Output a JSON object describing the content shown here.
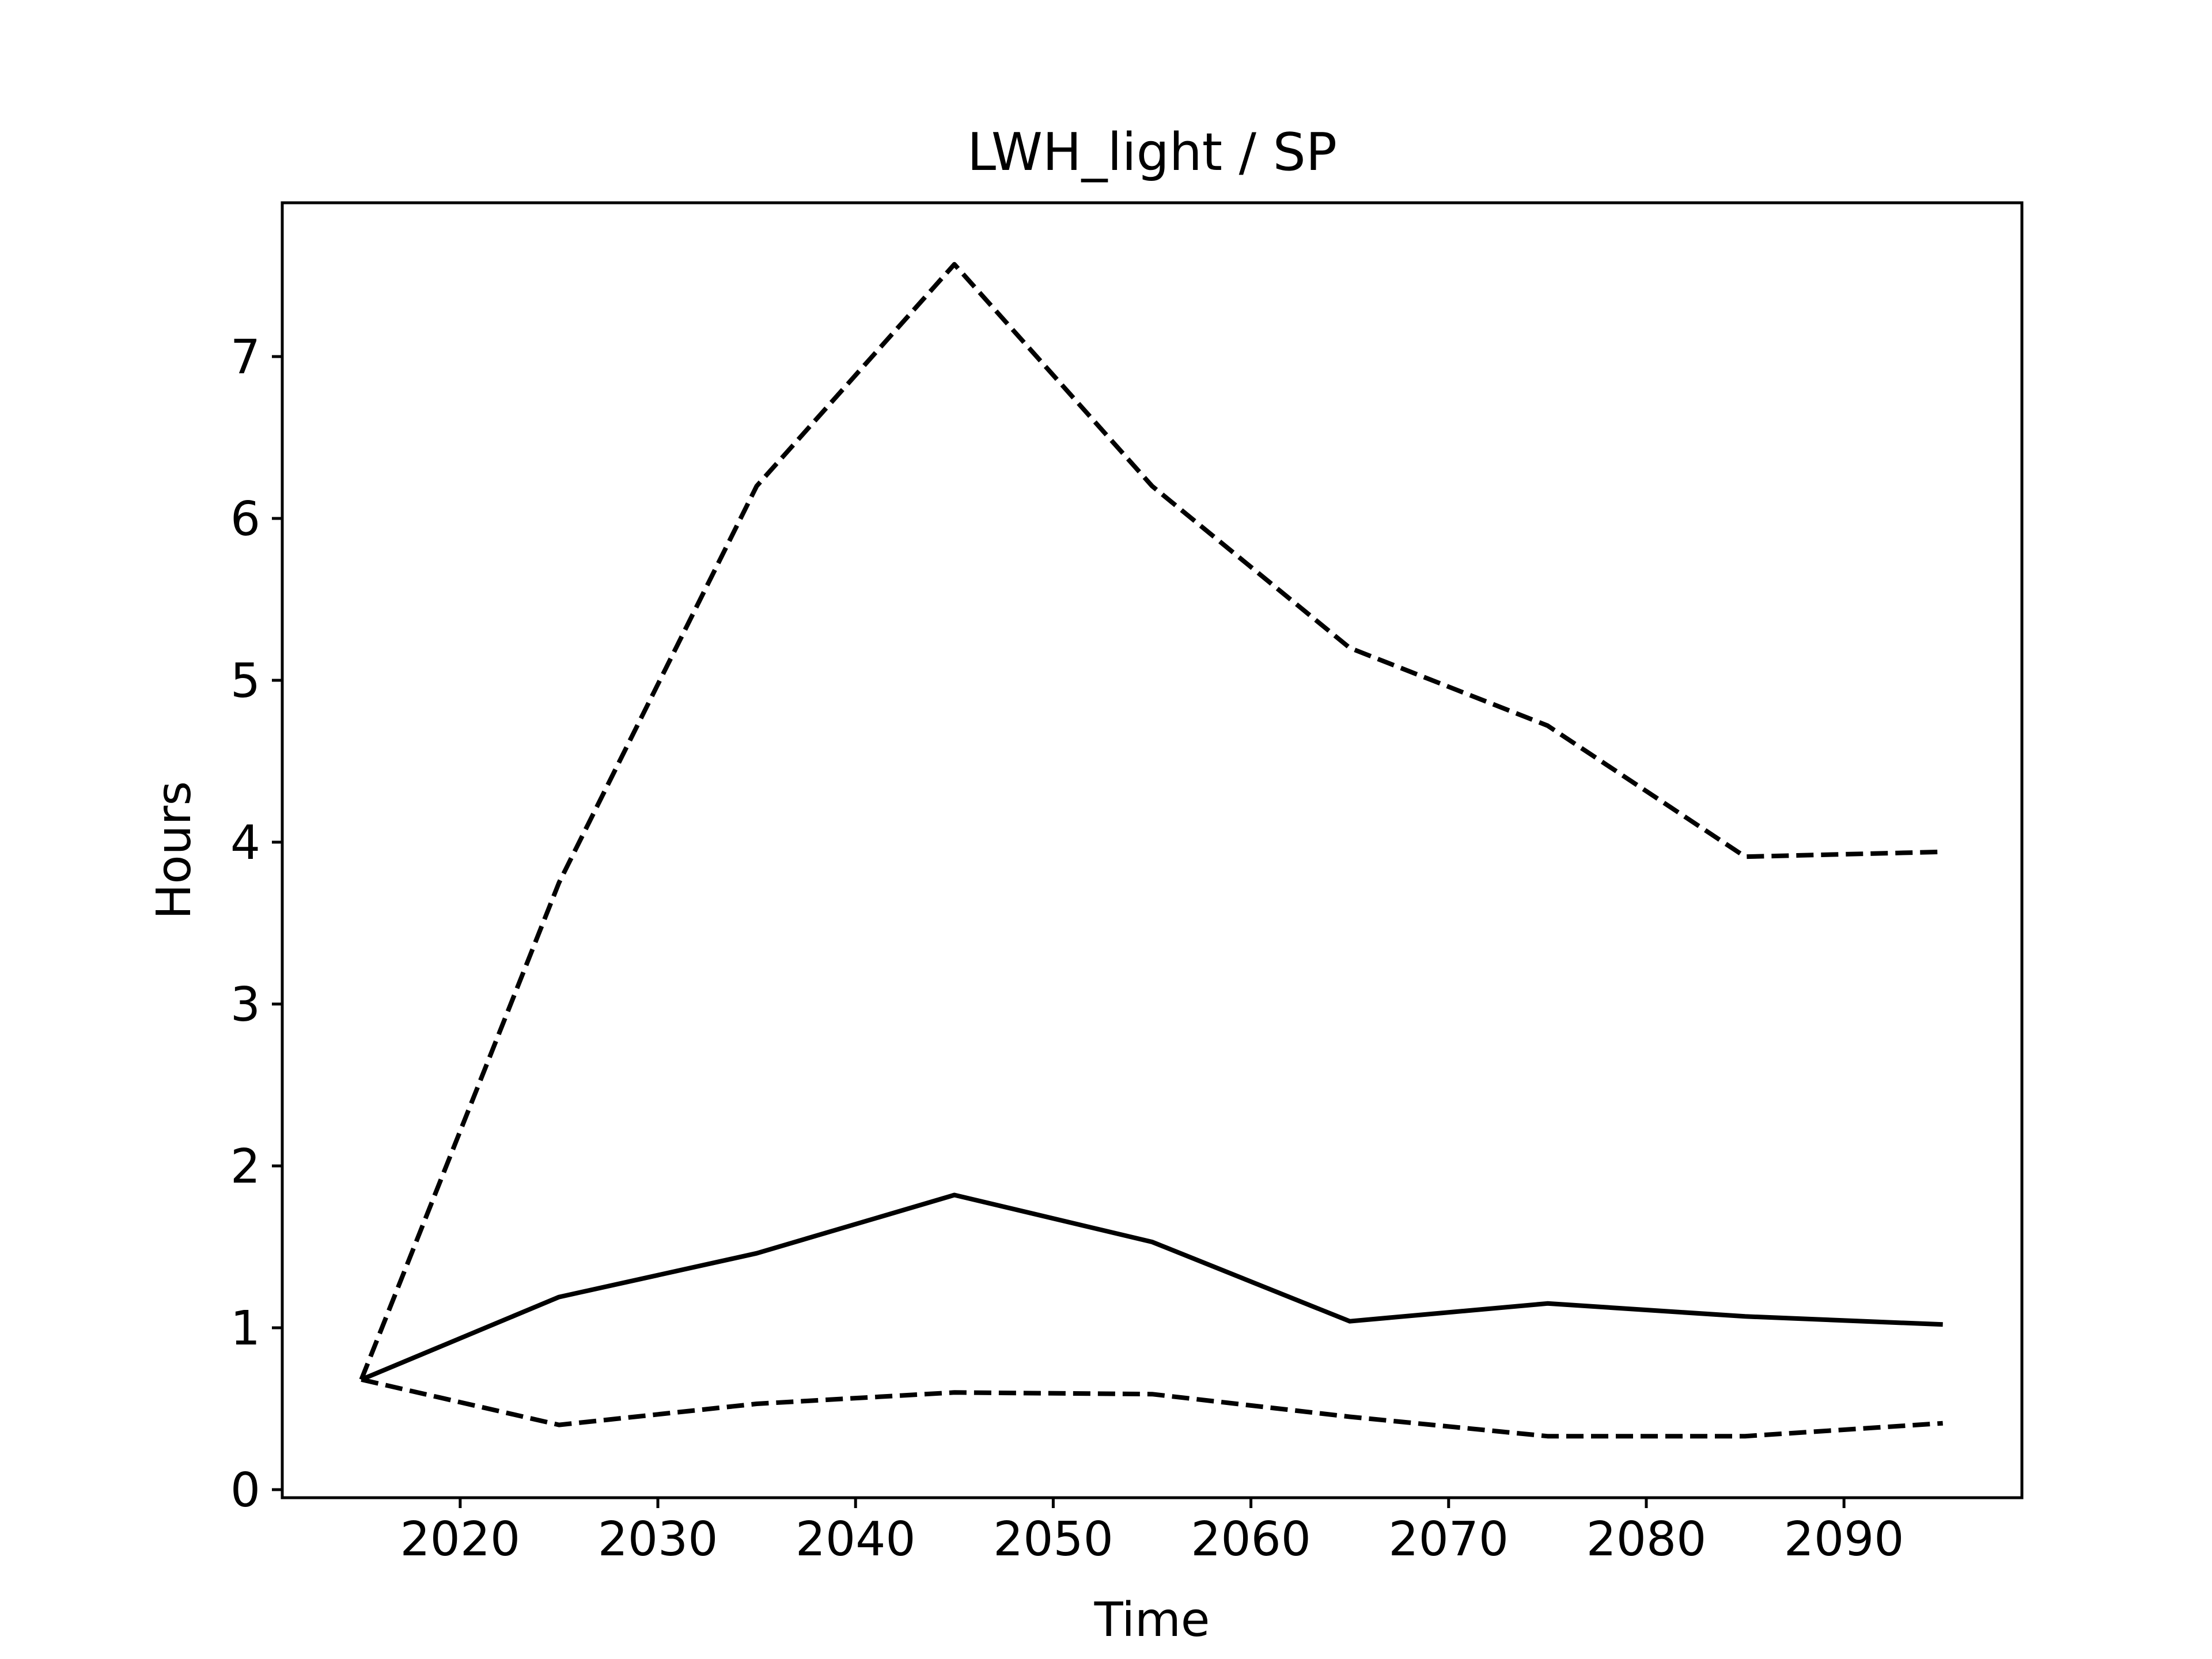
{
  "chart_data": {
    "type": "line",
    "title": "LWH_light / SP",
    "xlabel": "Time",
    "ylabel": "Hours",
    "xlim": [
      2011,
      2099
    ],
    "ylim": [
      -0.05,
      7.95
    ],
    "xticks": [
      2020,
      2030,
      2040,
      2050,
      2060,
      2070,
      2080,
      2090
    ],
    "yticks": [
      0,
      1,
      2,
      3,
      4,
      5,
      6,
      7
    ],
    "grid": false,
    "legend": false,
    "series": [
      {
        "style": "solid",
        "color": "#000000",
        "x": [
          2015,
          2025,
          2035,
          2045,
          2055,
          2065,
          2075,
          2085,
          2095
        ],
        "y": [
          0.68,
          1.19,
          1.46,
          1.82,
          1.53,
          1.04,
          1.15,
          1.07,
          1.02
        ]
      },
      {
        "style": "dashed",
        "color": "#000000",
        "x": [
          2015,
          2025,
          2035,
          2045,
          2055,
          2065,
          2075,
          2085,
          2095
        ],
        "y": [
          0.68,
          3.75,
          6.2,
          7.57,
          6.2,
          5.2,
          4.72,
          3.91,
          3.94
        ]
      },
      {
        "style": "dashed",
        "color": "#000000",
        "x": [
          2015,
          2025,
          2035,
          2045,
          2055,
          2065,
          2075,
          2085,
          2095
        ],
        "y": [
          0.68,
          0.4,
          0.53,
          0.6,
          0.59,
          0.45,
          0.33,
          0.33,
          0.41
        ]
      }
    ]
  }
}
